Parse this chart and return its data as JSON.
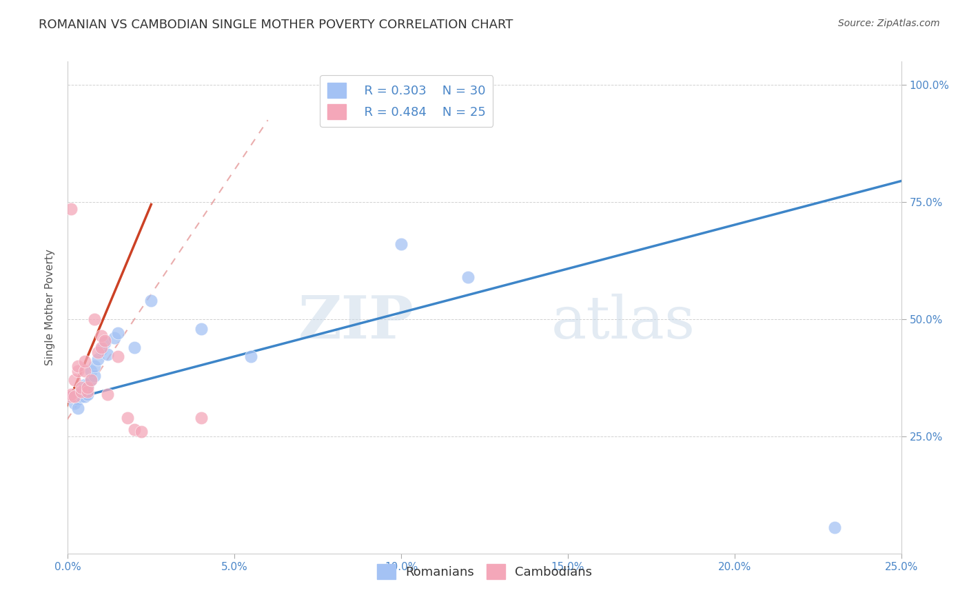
{
  "title": "ROMANIAN VS CAMBODIAN SINGLE MOTHER POVERTY CORRELATION CHART",
  "source": "Source: ZipAtlas.com",
  "ylabel": "Single Mother Poverty",
  "xlim": [
    0.0,
    0.25
  ],
  "ylim": [
    0.0,
    1.05
  ],
  "xticks": [
    0.0,
    0.05,
    0.1,
    0.15,
    0.2,
    0.25
  ],
  "yticks": [
    0.25,
    0.5,
    0.75,
    1.0
  ],
  "xticklabels": [
    "0.0%",
    "5.0%",
    "10.0%",
    "15.0%",
    "20.0%",
    "25.0%"
  ],
  "yticklabels_right": [
    "25.0%",
    "50.0%",
    "75.0%",
    "100.0%"
  ],
  "romanian_R": 0.303,
  "romanian_N": 30,
  "cambodian_R": 0.484,
  "cambodian_N": 25,
  "blue_color": "#a4c2f4",
  "pink_color": "#f4a7b9",
  "blue_line_color": "#3d85c8",
  "pink_line_color": "#cc4125",
  "pink_dash_color": "#dd7777",
  "watermark_zip": "ZIP",
  "watermark_atlas": "atlas",
  "background_color": "#ffffff",
  "romanian_x": [
    0.001,
    0.002,
    0.002,
    0.003,
    0.003,
    0.003,
    0.004,
    0.004,
    0.005,
    0.005,
    0.005,
    0.006,
    0.006,
    0.007,
    0.007,
    0.008,
    0.008,
    0.009,
    0.01,
    0.011,
    0.012,
    0.014,
    0.015,
    0.02,
    0.025,
    0.04,
    0.055,
    0.1,
    0.12,
    0.23
  ],
  "romanian_y": [
    0.335,
    0.335,
    0.32,
    0.33,
    0.34,
    0.31,
    0.335,
    0.335,
    0.34,
    0.335,
    0.36,
    0.34,
    0.36,
    0.37,
    0.39,
    0.38,
    0.4,
    0.415,
    0.435,
    0.45,
    0.425,
    0.46,
    0.47,
    0.44,
    0.54,
    0.48,
    0.42,
    0.66,
    0.59,
    0.055
  ],
  "cambodian_x": [
    0.001,
    0.001,
    0.002,
    0.002,
    0.003,
    0.003,
    0.004,
    0.004,
    0.005,
    0.005,
    0.006,
    0.006,
    0.007,
    0.008,
    0.009,
    0.01,
    0.01,
    0.011,
    0.012,
    0.015,
    0.018,
    0.02,
    0.022,
    0.04,
    0.001
  ],
  "cambodian_y": [
    0.335,
    0.34,
    0.335,
    0.37,
    0.39,
    0.4,
    0.345,
    0.355,
    0.39,
    0.41,
    0.345,
    0.355,
    0.37,
    0.5,
    0.43,
    0.44,
    0.465,
    0.455,
    0.34,
    0.42,
    0.29,
    0.265,
    0.26,
    0.29,
    0.735
  ],
  "blue_trend_x": [
    0.0,
    0.25
  ],
  "blue_trend_y": [
    0.327,
    0.795
  ],
  "pink_trend_x": [
    -0.005,
    0.06
  ],
  "pink_trend_y": [
    0.235,
    0.925
  ]
}
